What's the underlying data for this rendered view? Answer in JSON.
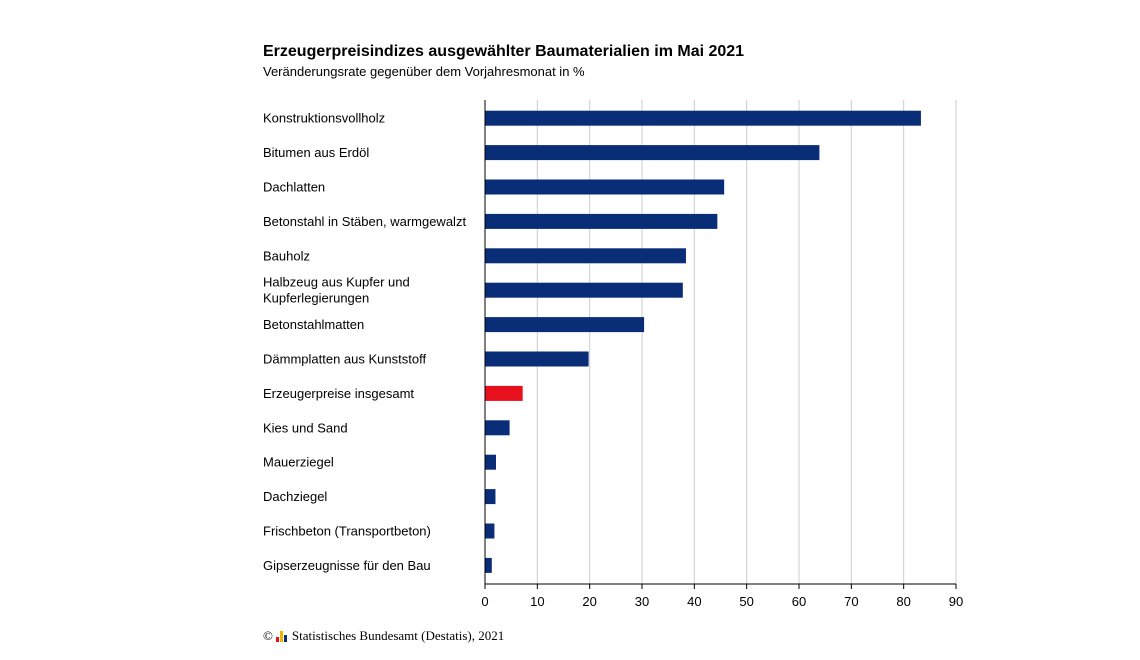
{
  "chart_data": {
    "type": "bar",
    "orientation": "horizontal",
    "title": "Erzeugerpreisindizes ausgewählter Baumaterialien im Mai 2021",
    "subtitle": "Veränderungsrate gegenüber dem Vorjahresmonat in %",
    "categories": [
      "Konstruktionsvollholz",
      "Bitumen aus Erdöl",
      "Dachlatten",
      "Betonstahl in Stäben, warmgewalzt",
      "Bauholz",
      "Halbzeug aus Kupfer und\nKupferlegierungen",
      "Betonstahlmatten",
      "Dämmplatten aus Kunststoff",
      "Erzeugerpreise insgesamt",
      "Kies und Sand",
      "Mauerziegel",
      "Dachziegel",
      "Frischbeton (Transportbeton)",
      "Gipserzeugnisse für den Bau"
    ],
    "values": [
      83.3,
      63.9,
      45.7,
      44.4,
      38.4,
      37.8,
      30.4,
      19.8,
      7.2,
      4.7,
      2.1,
      2.0,
      1.8,
      1.3
    ],
    "xlim": [
      0,
      90
    ],
    "xticks": [
      0,
      10,
      20,
      30,
      40,
      50,
      60,
      70,
      80,
      90
    ],
    "grid": true,
    "colors": {
      "default": "#0a2d78",
      "highlight": "#e8101c",
      "grid": "#cccccc"
    },
    "highlight_index": 8
  },
  "footer": {
    "copyright": "©",
    "source": "Statistisches Bundesamt (Destatis), 2021",
    "logo_icon": "destatis-logo-icon"
  }
}
